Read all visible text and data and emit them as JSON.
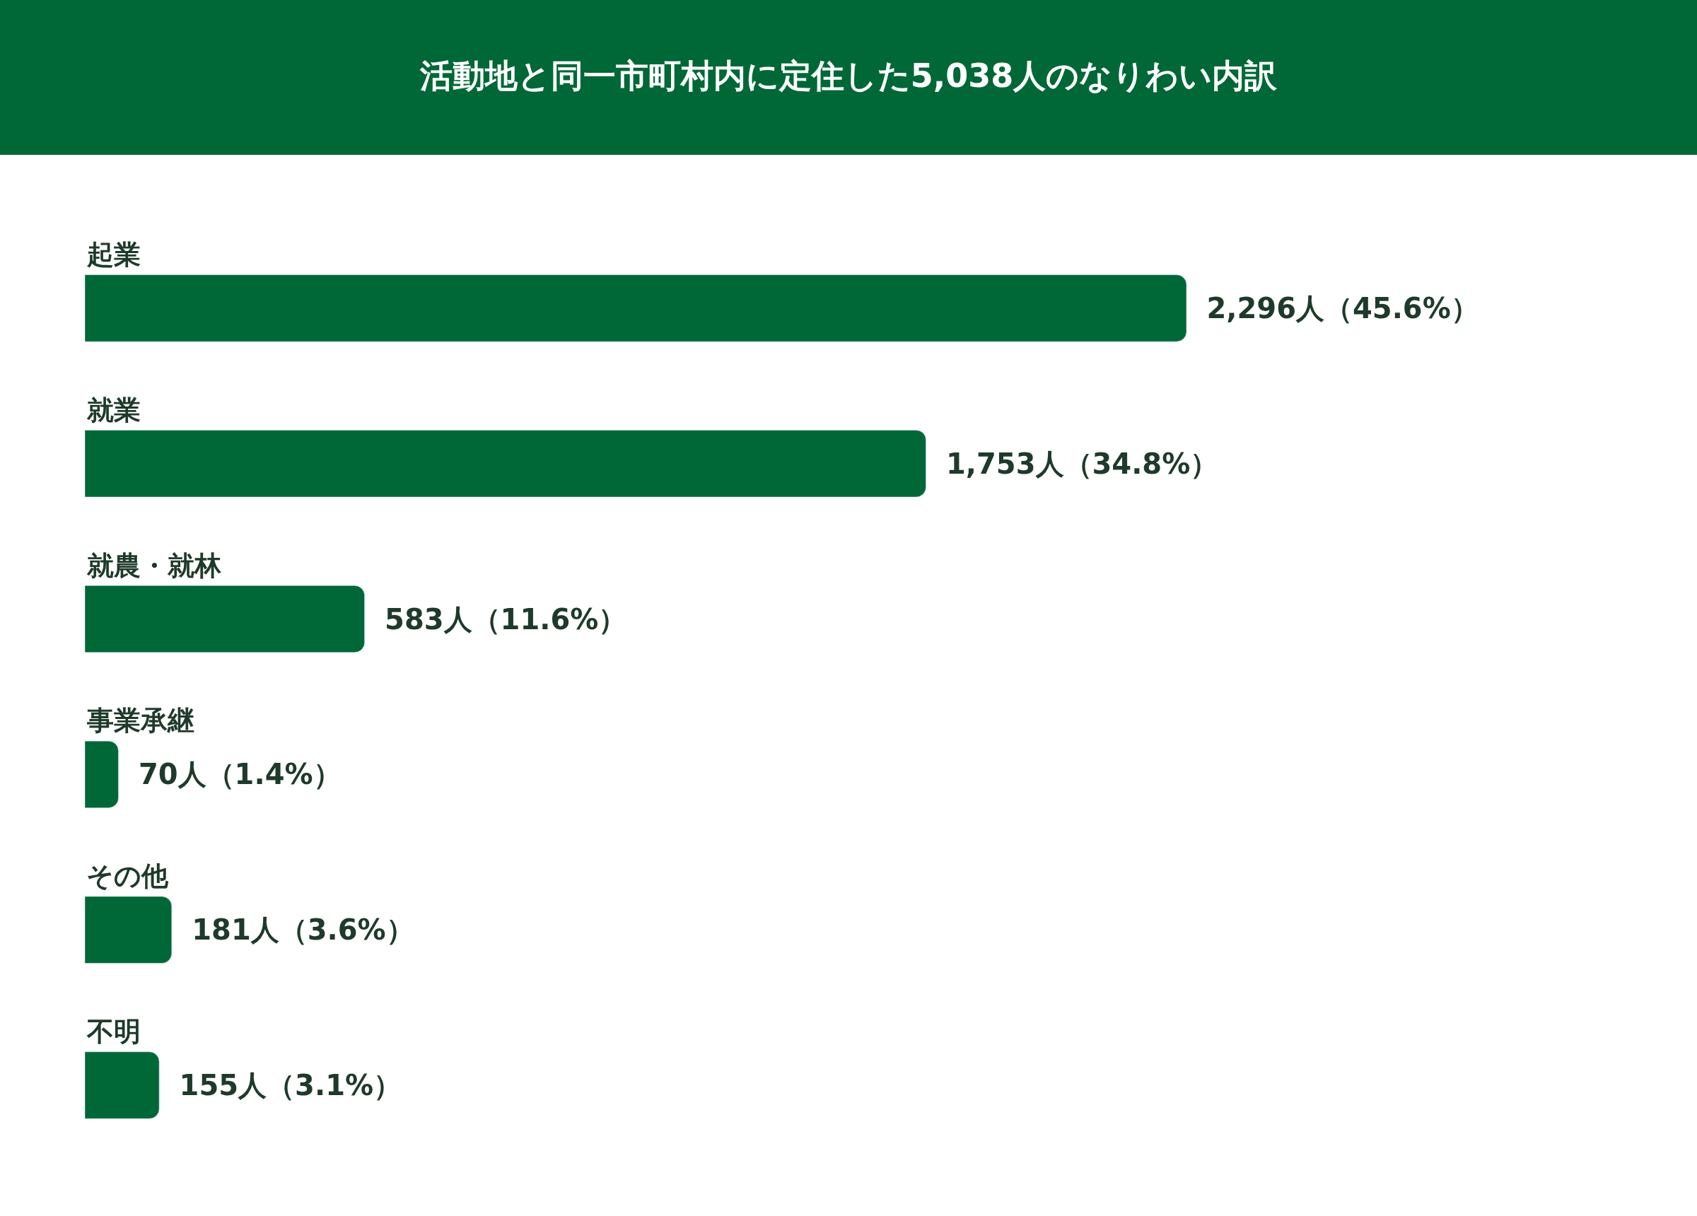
{
  "chart_data": {
    "type": "bar",
    "orientation": "horizontal",
    "title": "活動地と同一市町村内に定住した5,038人のなりわい内訳",
    "categories": [
      "起業",
      "就業",
      "就農・就林",
      "事業承継",
      "その他",
      "不明"
    ],
    "values": [
      2296,
      1753,
      583,
      70,
      181,
      155
    ],
    "value_labels": [
      "2,296人（45.6%）",
      "1,753人（34.8%）",
      "583人（11.6%）",
      "70人（1.4%）",
      "181人（3.6%）",
      "155人（3.1%）"
    ],
    "color": "#006837"
  }
}
